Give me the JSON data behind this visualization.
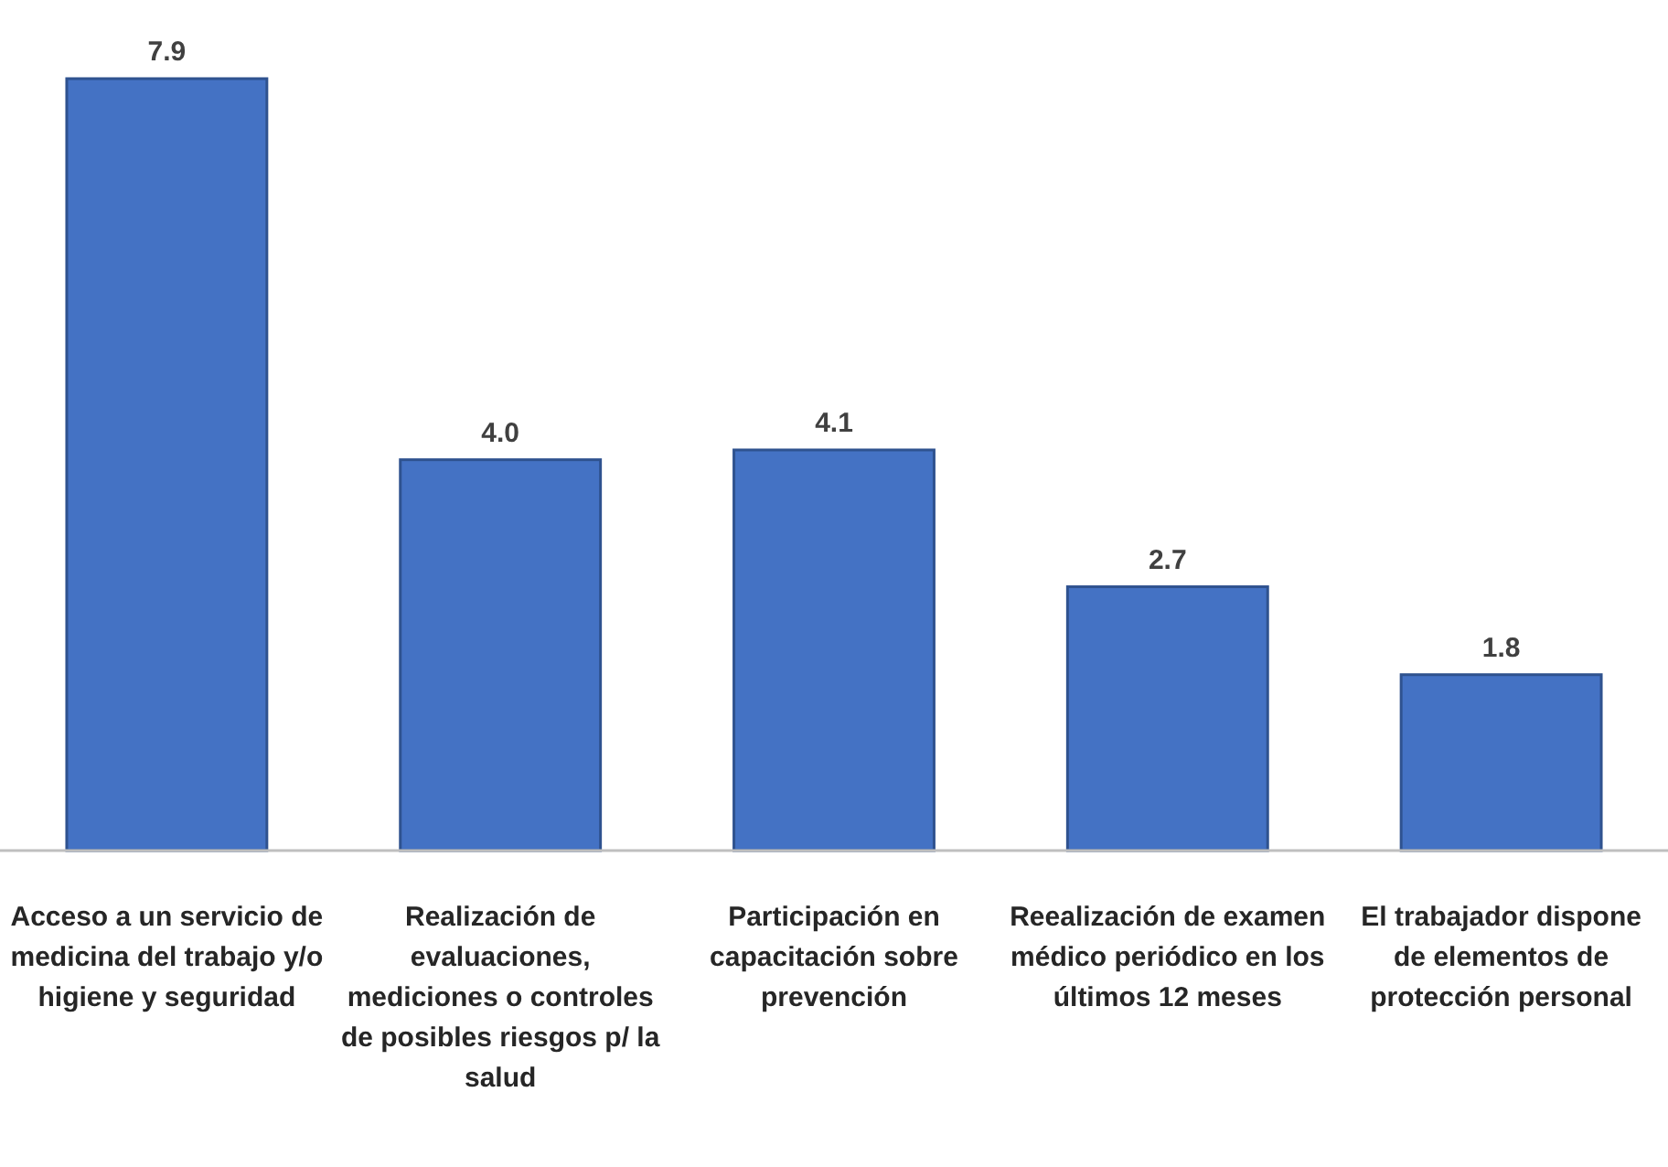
{
  "chart_data": {
    "type": "bar",
    "categories": [
      "Acceso a un servicio de medicina del trabajo y/o higiene y seguridad",
      "Realización de evaluaciones, mediciones o controles de posibles riesgos p/ la salud",
      "Participación en capacitación sobre prevención",
      "Reealización de examen médico periódico en los últimos 12 meses",
      "El trabajador dispone de elementos de protección personal"
    ],
    "values": [
      7.9,
      4.0,
      4.1,
      2.7,
      1.8
    ],
    "value_labels": [
      "7.9",
      "4.0",
      "4.1",
      "2.7",
      "1.8"
    ],
    "color": "#4472c4",
    "tick_labels": "x"
  }
}
